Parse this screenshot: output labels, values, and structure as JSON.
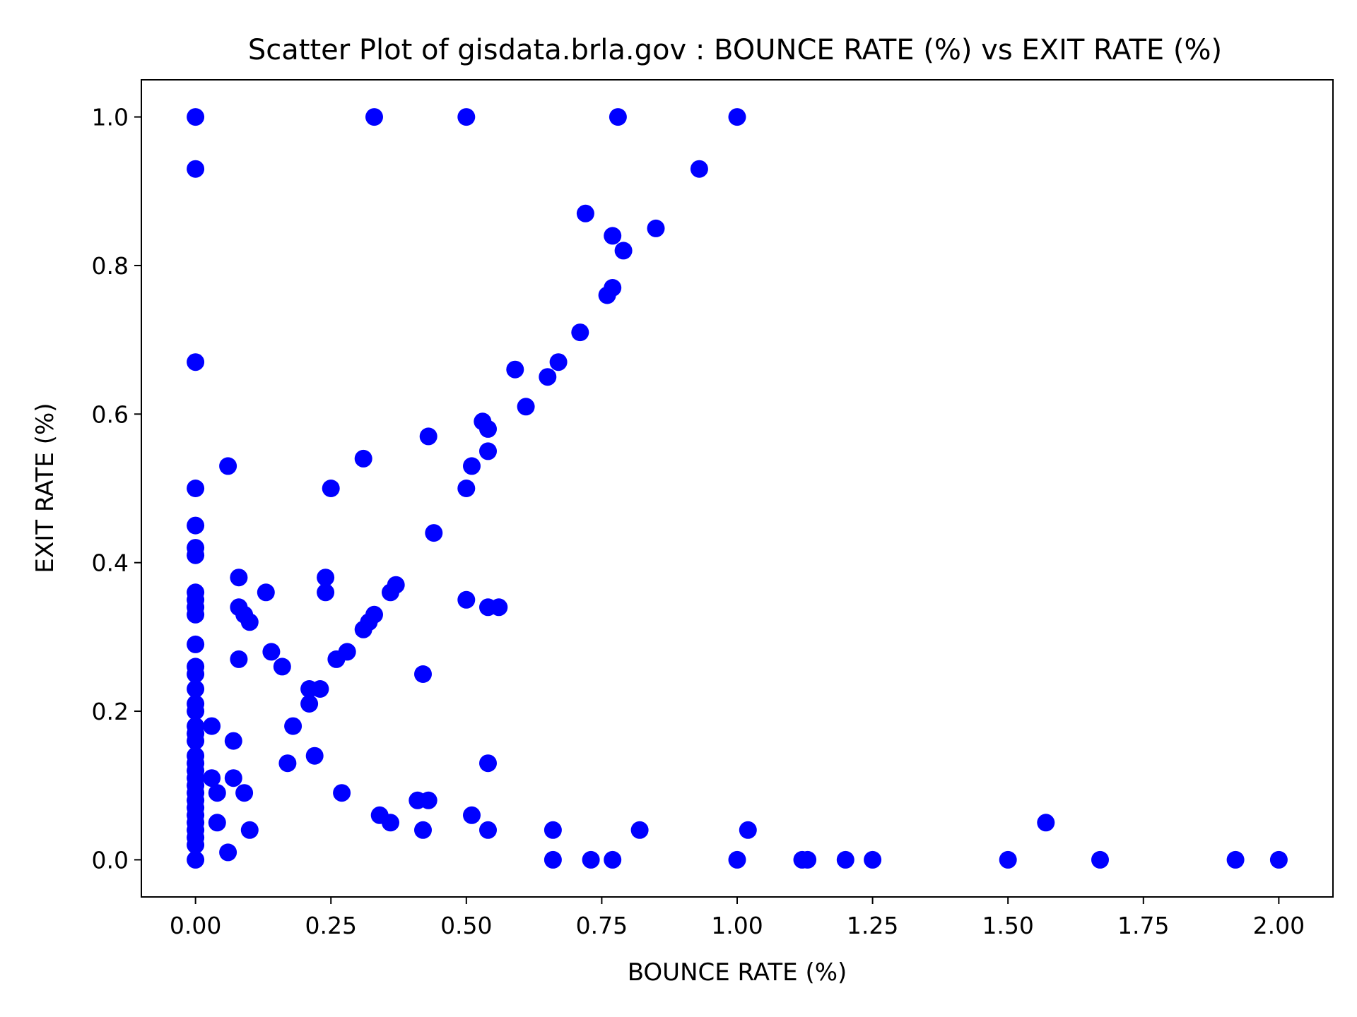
{
  "chart_data": {
    "type": "scatter",
    "title": "Scatter Plot of gisdata.brla.gov : BOUNCE RATE (%) vs EXIT RATE (%)",
    "xlabel": "BOUNCE RATE (%)",
    "ylabel": "EXIT RATE (%)",
    "xlim": [
      -0.1,
      2.1
    ],
    "ylim": [
      -0.05,
      1.05
    ],
    "xticks": [
      0.0,
      0.25,
      0.5,
      0.75,
      1.0,
      1.25,
      1.5,
      1.75,
      2.0
    ],
    "xtick_labels": [
      "0.00",
      "0.25",
      "0.50",
      "0.75",
      "1.00",
      "1.25",
      "1.50",
      "1.75",
      "2.00"
    ],
    "yticks": [
      0.0,
      0.2,
      0.4,
      0.6,
      0.8,
      1.0
    ],
    "ytick_labels": [
      "0.0",
      "0.2",
      "0.4",
      "0.6",
      "0.8",
      "1.0"
    ],
    "grid": false,
    "marker_color": "#0000ff",
    "points": [
      [
        0,
        1.0
      ],
      [
        0,
        0.93
      ],
      [
        0,
        0.67
      ],
      [
        0,
        0.5
      ],
      [
        0,
        0.45
      ],
      [
        0,
        0.42
      ],
      [
        0,
        0.41
      ],
      [
        0,
        0.36
      ],
      [
        0,
        0.35
      ],
      [
        0,
        0.34
      ],
      [
        0,
        0.33
      ],
      [
        0,
        0.29
      ],
      [
        0,
        0.26
      ],
      [
        0,
        0.25
      ],
      [
        0,
        0.23
      ],
      [
        0,
        0.21
      ],
      [
        0,
        0.2
      ],
      [
        0,
        0.18
      ],
      [
        0,
        0.17
      ],
      [
        0,
        0.16
      ],
      [
        0,
        0.14
      ],
      [
        0,
        0.13
      ],
      [
        0,
        0.12
      ],
      [
        0,
        0.11
      ],
      [
        0,
        0.1
      ],
      [
        0,
        0.09
      ],
      [
        0,
        0.08
      ],
      [
        0,
        0.07
      ],
      [
        0,
        0.06
      ],
      [
        0,
        0.05
      ],
      [
        0,
        0.04
      ],
      [
        0,
        0.03
      ],
      [
        0,
        0.02
      ],
      [
        0,
        0.0
      ],
      [
        0.03,
        0.18
      ],
      [
        0.03,
        0.11
      ],
      [
        0.04,
        0.09
      ],
      [
        0.04,
        0.05
      ],
      [
        0.06,
        0.53
      ],
      [
        0.06,
        0.01
      ],
      [
        0.07,
        0.16
      ],
      [
        0.07,
        0.11
      ],
      [
        0.08,
        0.38
      ],
      [
        0.08,
        0.34
      ],
      [
        0.08,
        0.27
      ],
      [
        0.09,
        0.33
      ],
      [
        0.09,
        0.09
      ],
      [
        0.1,
        0.32
      ],
      [
        0.1,
        0.04
      ],
      [
        0.13,
        0.36
      ],
      [
        0.14,
        0.28
      ],
      [
        0.16,
        0.26
      ],
      [
        0.17,
        0.13
      ],
      [
        0.18,
        0.18
      ],
      [
        0.21,
        0.23
      ],
      [
        0.21,
        0.21
      ],
      [
        0.22,
        0.14
      ],
      [
        0.23,
        0.23
      ],
      [
        0.24,
        0.38
      ],
      [
        0.24,
        0.36
      ],
      [
        0.25,
        0.5
      ],
      [
        0.26,
        0.27
      ],
      [
        0.27,
        0.09
      ],
      [
        0.28,
        0.28
      ],
      [
        0.31,
        0.54
      ],
      [
        0.31,
        0.31
      ],
      [
        0.32,
        0.32
      ],
      [
        0.33,
        1.0
      ],
      [
        0.33,
        0.33
      ],
      [
        0.34,
        0.06
      ],
      [
        0.36,
        0.36
      ],
      [
        0.36,
        0.05
      ],
      [
        0.37,
        0.37
      ],
      [
        0.41,
        0.08
      ],
      [
        0.42,
        0.25
      ],
      [
        0.42,
        0.04
      ],
      [
        0.43,
        0.57
      ],
      [
        0.43,
        0.08
      ],
      [
        0.44,
        0.44
      ],
      [
        0.5,
        1.0
      ],
      [
        0.5,
        0.5
      ],
      [
        0.5,
        0.35
      ],
      [
        0.51,
        0.53
      ],
      [
        0.51,
        0.06
      ],
      [
        0.53,
        0.59
      ],
      [
        0.54,
        0.58
      ],
      [
        0.54,
        0.55
      ],
      [
        0.54,
        0.34
      ],
      [
        0.54,
        0.13
      ],
      [
        0.54,
        0.04
      ],
      [
        0.56,
        0.34
      ],
      [
        0.59,
        0.66
      ],
      [
        0.61,
        0.61
      ],
      [
        0.65,
        0.65
      ],
      [
        0.66,
        0.04
      ],
      [
        0.66,
        0.0
      ],
      [
        0.67,
        0.67
      ],
      [
        0.71,
        0.71
      ],
      [
        0.72,
        0.87
      ],
      [
        0.73,
        0.0
      ],
      [
        0.76,
        0.76
      ],
      [
        0.77,
        0.84
      ],
      [
        0.77,
        0.77
      ],
      [
        0.77,
        0.0
      ],
      [
        0.78,
        1.0
      ],
      [
        0.79,
        0.82
      ],
      [
        0.82,
        0.04
      ],
      [
        0.85,
        0.85
      ],
      [
        0.93,
        0.93
      ],
      [
        1.0,
        1.0
      ],
      [
        1.0,
        0.0
      ],
      [
        1.02,
        0.04
      ],
      [
        1.12,
        0.0
      ],
      [
        1.13,
        0.0
      ],
      [
        1.2,
        0.0
      ],
      [
        1.25,
        0.0
      ],
      [
        1.5,
        0.0
      ],
      [
        1.57,
        0.05
      ],
      [
        1.67,
        0.0
      ],
      [
        1.92,
        0.0
      ],
      [
        2.0,
        0.0
      ]
    ]
  }
}
